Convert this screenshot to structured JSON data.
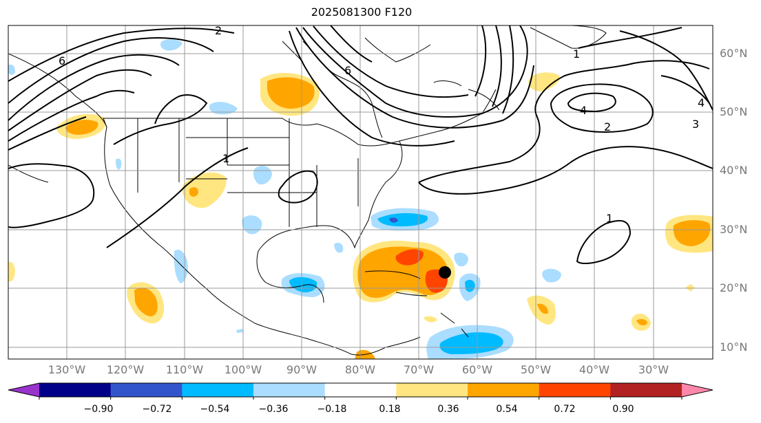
{
  "title": "2025081300 F120",
  "lat_labels": [
    "60°N",
    "50°N",
    "40°N",
    "30°N",
    "20°N",
    "10°N"
  ],
  "lon_labels": [
    "130°W",
    "120°W",
    "110°W",
    "100°W",
    "90°W",
    "80°W",
    "70°W",
    "60°W",
    "50°W",
    "40°W",
    "30°W"
  ],
  "contour_labels": [
    "1",
    "2",
    "3",
    "4",
    "6"
  ],
  "colorbar": {
    "ticks": [
      "−0.90",
      "−0.72",
      "−0.54",
      "−0.36",
      "−0.18",
      "0.18",
      "0.36",
      "0.54",
      "0.72",
      "0.90"
    ],
    "colors": [
      "#9933cc",
      "#000088",
      "#3355cc",
      "#00bbff",
      "#aaddff",
      "#ffffff",
      "#ffe680",
      "#ffa500",
      "#ff4400",
      "#b22222",
      "#ff88aa"
    ]
  },
  "storm_marker": {
    "lon": -65.5,
    "lat": 22.5
  }
}
